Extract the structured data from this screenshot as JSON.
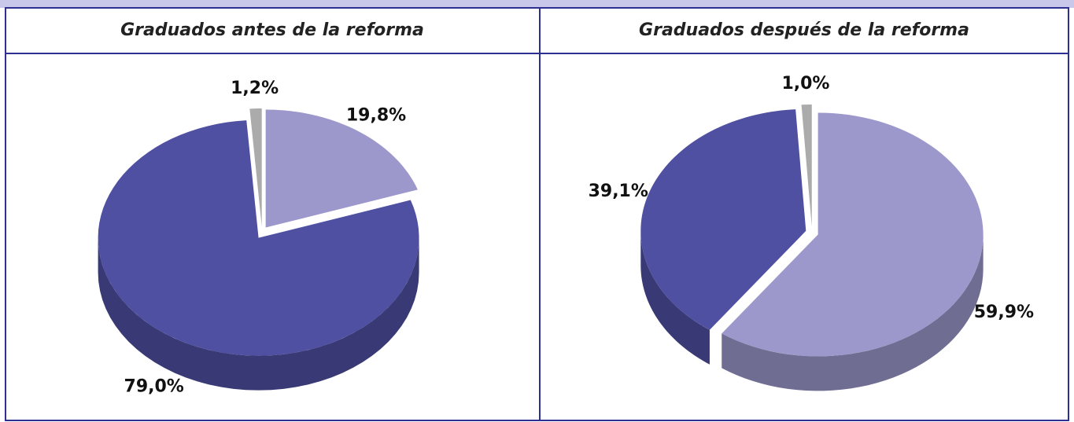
{
  "chart_data": [
    {
      "type": "pie",
      "title": "Graduados antes de la reforma",
      "values": [
        19.8,
        79.0,
        1.2
      ],
      "value_labels": [
        "19,8%",
        "79,0%",
        "1,2%"
      ],
      "colors": [
        "#9c98cb",
        "#4f50a2",
        "#ababab"
      ]
    },
    {
      "type": "pie",
      "title": "Graduados después de la reforma",
      "values": [
        59.9,
        39.1,
        1.0
      ],
      "value_labels": [
        "59,9%",
        "39,1%",
        "1,0%"
      ],
      "colors": [
        "#9c98cb",
        "#4f50a2",
        "#ababab"
      ]
    }
  ]
}
